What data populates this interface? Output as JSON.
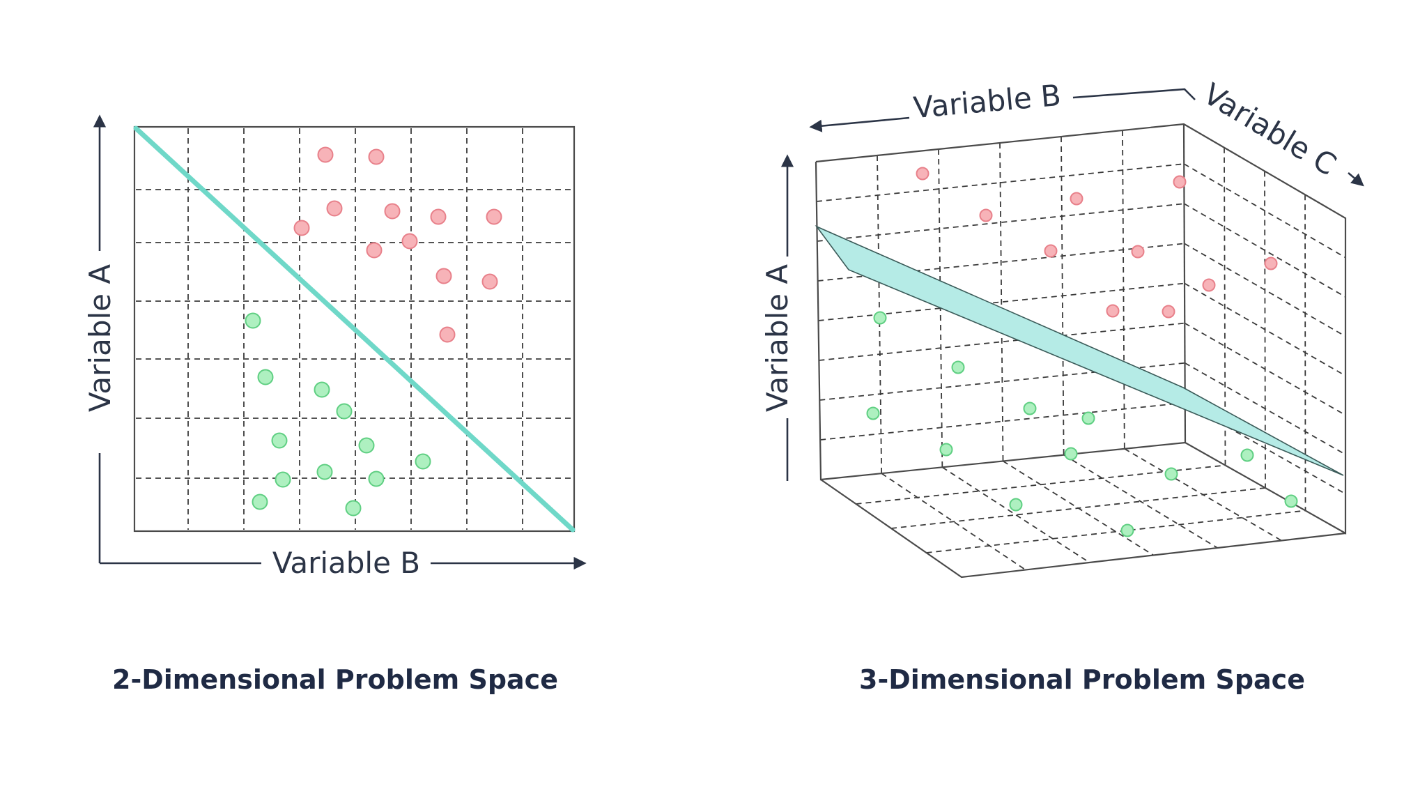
{
  "colors": {
    "class_red_fill": "#f7b3b8",
    "class_red_stroke": "#e8808a",
    "class_green_fill": "#aef0c0",
    "class_green_stroke": "#5fcf82",
    "separator": "#6fd8c8",
    "plane_fill": "#b5ebe6",
    "axis_text": "#2b3446"
  },
  "panel_2d": {
    "caption": "2-Dimensional Problem Space",
    "x_axis_label": "Variable B",
    "y_axis_label": "Variable A"
  },
  "panel_3d": {
    "caption": "3-Dimensional Problem Space",
    "x_axis_label": "Variable B",
    "y_axis_label": "Variable A",
    "z_axis_label": "Variable C"
  }
}
